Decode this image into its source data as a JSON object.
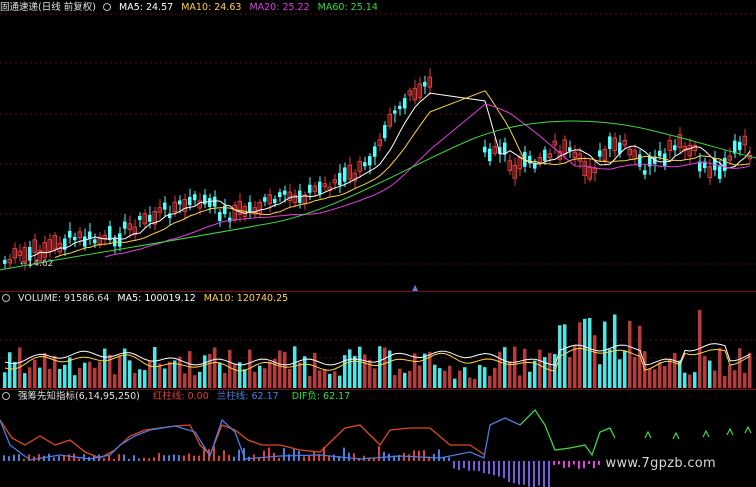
{
  "main_panel": {
    "title": "固通速递(日线 前复权)",
    "ma_items": [
      {
        "label": "MA5: 24.57",
        "color": "#ffffff"
      },
      {
        "label": "MA10: 24.63",
        "color": "#ffd34a"
      },
      {
        "label": "MA20: 25.22",
        "color": "#e040e0"
      },
      {
        "label": "MA60: 25.14",
        "color": "#3ed83e"
      }
    ],
    "low_price_label": "14.62"
  },
  "volume_panel": {
    "title": "VOLUME: 91586.64",
    "ma_items": [
      {
        "label": "MA5: 100019.12",
        "color": "#ffffff"
      },
      {
        "label": "MA10: 120740.25",
        "color": "#ffd34a"
      }
    ]
  },
  "indicator_panel": {
    "title": "强筹先知指标(6,14,95,250)",
    "items": [
      {
        "label": "红柱线: 0.00",
        "color": "#e04040"
      },
      {
        "label": "兰柱线: 62.17",
        "color": "#4a7ee0"
      },
      {
        "label": "DIF负: 62.17",
        "color": "#3ed83e"
      }
    ]
  },
  "watermark": "www.7gpzb.com",
  "colors": {
    "up": "#e03c3c",
    "down": "#54ffff",
    "ma5": "#ffffff",
    "ma10": "#ffd34a",
    "ma20": "#e040e0",
    "ma60": "#3ed83e",
    "panel_border": "#7a1212"
  }
}
